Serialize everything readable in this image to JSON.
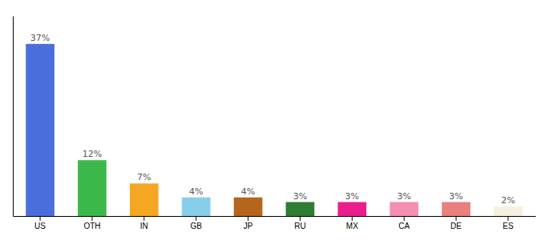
{
  "chart_data": {
    "type": "bar",
    "categories": [
      "US",
      "OTH",
      "IN",
      "GB",
      "JP",
      "RU",
      "MX",
      "CA",
      "DE",
      "ES"
    ],
    "values": [
      37,
      12,
      7,
      4,
      4,
      3,
      3,
      3,
      3,
      2
    ],
    "value_labels": [
      "37%",
      "12%",
      "7%",
      "4%",
      "4%",
      "3%",
      "3%",
      "3%",
      "3%",
      "2%"
    ],
    "data_labels": true,
    "colors": [
      "#4a6fdc",
      "#3cb84a",
      "#f5a623",
      "#87ceeb",
      "#b5651d",
      "#2e7d32",
      "#e91e8c",
      "#f48fb1",
      "#e88080",
      "#f5f0dc"
    ],
    "ylim": [
      0,
      43
    ],
    "tick_labels": "x"
  }
}
